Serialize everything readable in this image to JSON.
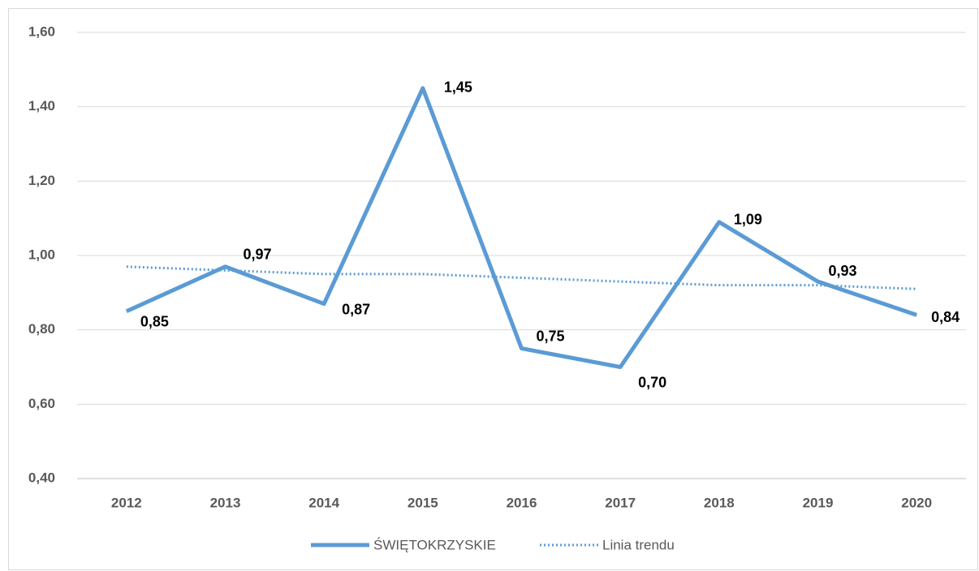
{
  "chart_data": {
    "type": "line",
    "categories": [
      "2012",
      "2013",
      "2014",
      "2015",
      "2016",
      "2017",
      "2018",
      "2019",
      "2020"
    ],
    "series": [
      {
        "name": "ŚWIĘTOKRZYSKIE",
        "color": "#5b9bd5",
        "style": "solid",
        "values": [
          0.85,
          0.97,
          0.87,
          1.45,
          0.75,
          0.7,
          1.09,
          0.93,
          0.84
        ],
        "value_labels": [
          "0,85",
          "0,97",
          "0,87",
          "1,45",
          "0,75",
          "0,70",
          "1,09",
          "0,93",
          "0,84"
        ]
      },
      {
        "name": "Linia trendu",
        "color": "#5b9bd5",
        "style": "dotted",
        "values": [
          0.97,
          0.96,
          0.95,
          0.95,
          0.94,
          0.93,
          0.92,
          0.92,
          0.91
        ]
      }
    ],
    "ylim": [
      0.4,
      1.6
    ],
    "yticks": [
      {
        "value": 0.4,
        "label": "0,40"
      },
      {
        "value": 0.6,
        "label": "0,60"
      },
      {
        "value": 0.8,
        "label": "0,80"
      },
      {
        "value": 1.0,
        "label": "1,00"
      },
      {
        "value": 1.2,
        "label": "1,20"
      },
      {
        "value": 1.4,
        "label": "1,40"
      },
      {
        "value": 1.6,
        "label": "1,60"
      }
    ],
    "grid": true,
    "legend": "bottom"
  }
}
